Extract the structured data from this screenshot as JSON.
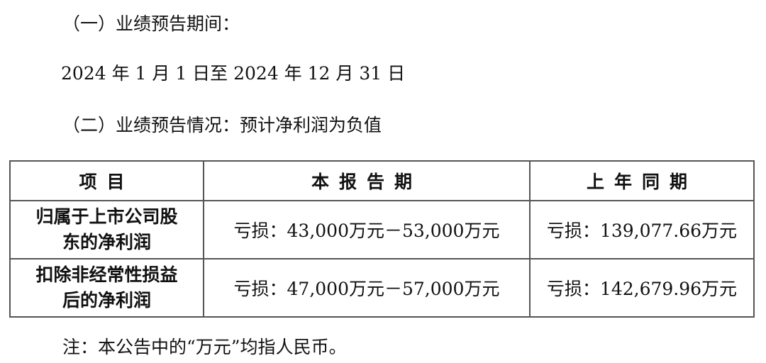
{
  "sections": {
    "period_heading": "（一）业绩预告期间：",
    "period_value": "2024 年 1 月 1 日至 2024 年 12 月 31 日",
    "situation_heading": "（二）业绩预告情况：预计净利润为负值"
  },
  "table": {
    "headers": [
      "项目",
      "本报告期",
      "上年同期"
    ],
    "rows": [
      {
        "item_line1": "归属于上市公司股",
        "item_line2": "东的净利润",
        "current": "亏损：43,000万元－53,000万元",
        "previous": "亏损：139,077.66万元"
      },
      {
        "item_line1": "扣除非经常性损益",
        "item_line2": "后的净利润",
        "current": "亏损：47,000万元－57,000万元",
        "previous": "亏损：142,679.96万元"
      }
    ]
  },
  "note": "注：本公告中的“万元”均指人民币。"
}
